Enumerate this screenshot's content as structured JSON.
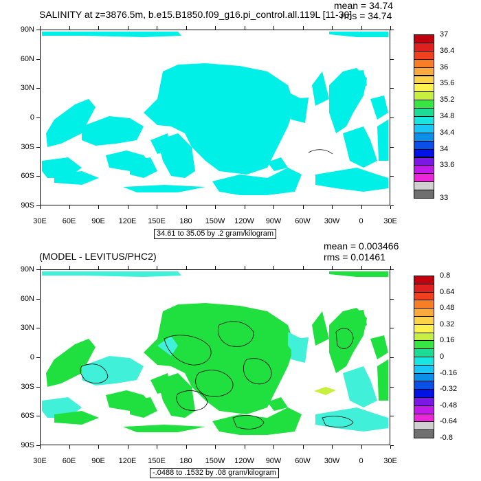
{
  "panels": [
    {
      "title": "SALINITY at z=3876.5m, b.e15.B1850.f09_g16.pi_control.all.119L [11-30]",
      "mean": "mean = 34.74",
      "rms": "rms = 34.74",
      "info": "34.61 to 35.05 by .2 gram/kilogram",
      "lat_labels": [
        "90N",
        "60N",
        "30N",
        "0",
        "30S",
        "60S",
        "90S"
      ],
      "lon_labels": [
        "30E",
        "60E",
        "90E",
        "120E",
        "150E",
        "180",
        "150W",
        "120W",
        "90W",
        "60W",
        "30W",
        "0",
        "30E"
      ],
      "colorbar": {
        "labels": [
          "37",
          "36.4",
          "36",
          "35.6",
          "35.2",
          "34.8",
          "34.4",
          "34",
          "33.6",
          "33"
        ],
        "colors": [
          "#c0000f",
          "#e0201e",
          "#f0401e",
          "#f87e26",
          "#fca93d",
          "#fdd34a",
          "#fff44f",
          "#c7ef3f",
          "#38e543",
          "#1ddc95",
          "#18e6e0",
          "#18c6f8",
          "#0c8fe8",
          "#0a50e8",
          "#0013e4",
          "#7a19e5",
          "#c21aea",
          "#ec27d9",
          "#d0d0d0",
          "#707070"
        ]
      },
      "map_fill": "#00f0e8"
    },
    {
      "title": "(MODEL - LEVITUS/PHC2)",
      "mean": "mean = 0.003466",
      "rms": "rms = 0.01461",
      "info": "-.0488 to .1532 by .08 gram/kilogram",
      "lat_labels": [
        "90N",
        "60N",
        "30N",
        "0",
        "30S",
        "60S",
        "90S"
      ],
      "lon_labels": [
        "30E",
        "60E",
        "90E",
        "120E",
        "150E",
        "180",
        "150W",
        "120W",
        "90W",
        "60W",
        "30W",
        "0",
        "30E"
      ],
      "colorbar": {
        "labels": [
          "0.8",
          "0.64",
          "0.48",
          "0.32",
          "0.16",
          "0",
          "-0.16",
          "-0.32",
          "-0.48",
          "-0.64",
          "-0.8"
        ],
        "colors": [
          "#c0000f",
          "#e0201e",
          "#f0401e",
          "#f87e26",
          "#fca93d",
          "#fdd34a",
          "#fff44f",
          "#c7ef3f",
          "#38e543",
          "#1ddc95",
          "#18e6e0",
          "#18c6f8",
          "#0c8fe8",
          "#0a50e8",
          "#0013e4",
          "#7a19e5",
          "#c21aea",
          "#ec27d9",
          "#d0d0d0",
          "#707070"
        ]
      },
      "map_fill": "#20e040",
      "map_fill_alt": "#40f0d8"
    }
  ]
}
